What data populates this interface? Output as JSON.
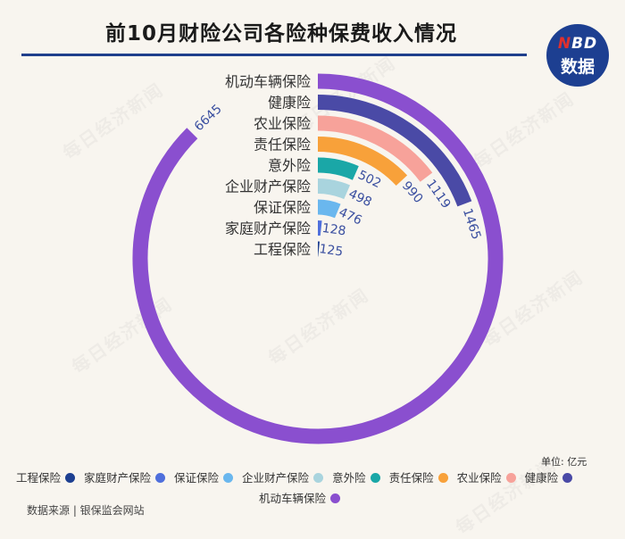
{
  "title": "前10月财险公司各险种保费收入情况",
  "logo": {
    "line1_n": "N",
    "line1_rest": "BD",
    "line2": "数据"
  },
  "watermark": "每日经济新闻",
  "unit": "单位: 亿元",
  "source": "数据来源 | 银保监会网站",
  "chart_data": {
    "type": "radial-bar",
    "title": "前10月财险公司各险种保费收入情况",
    "unit": "亿元",
    "max_value": 6645,
    "series": [
      {
        "name": "机动车辆保险",
        "value": 6645,
        "color": "#8a4fcf"
      },
      {
        "name": "健康险",
        "value": 1465,
        "color": "#4a4aa6"
      },
      {
        "name": "农业保险",
        "value": 1119,
        "color": "#f7a29a"
      },
      {
        "name": "责任保险",
        "value": 990,
        "color": "#f8a13a"
      },
      {
        "name": "意外险",
        "value": 502,
        "color": "#1aa7a7"
      },
      {
        "name": "企业财产保险",
        "value": 498,
        "color": "#a9d4de"
      },
      {
        "name": "保证保险",
        "value": 476,
        "color": "#6ab7ee"
      },
      {
        "name": "家庭财产保险",
        "value": 128,
        "color": "#4f6fdc"
      },
      {
        "name": "工程保险",
        "value": 125,
        "color": "#1d3f91"
      }
    ],
    "legend_position": "bottom",
    "legend": [
      {
        "name": "工程保险",
        "color": "#1d3f91"
      },
      {
        "name": "家庭财产保险",
        "color": "#4f6fdc"
      },
      {
        "name": "保证保险",
        "color": "#6ab7ee"
      },
      {
        "name": "企业财产保险",
        "color": "#a9d4de"
      },
      {
        "name": "意外险",
        "color": "#1aa7a7"
      },
      {
        "name": "责任保险",
        "color": "#f8a13a"
      },
      {
        "name": "农业保险",
        "color": "#f7a29a"
      },
      {
        "name": "健康险",
        "color": "#4a4aa6"
      },
      {
        "name": "机动车辆保险",
        "color": "#8a4fcf"
      }
    ]
  }
}
